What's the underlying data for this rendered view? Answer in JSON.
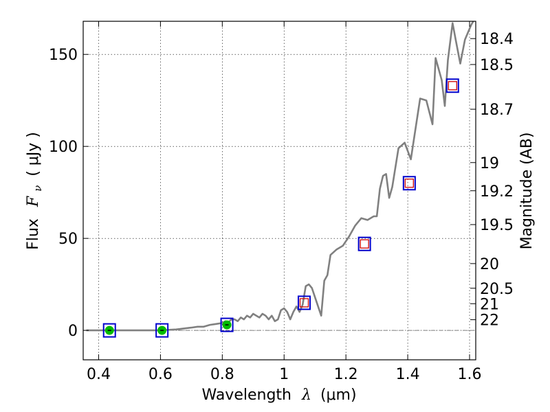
{
  "chart_data": {
    "type": "line",
    "xlabel_text": "Wavelength",
    "xlabel_symbol": "λ",
    "xlabel_unit": "(μm)",
    "ylabel_text": "Flux",
    "ylabel_symbol": "F",
    "ylabel_subscript": "ν",
    "ylabel_unit": "( μJy )",
    "ylabel_right": "Magnitude (AB)",
    "xlim": [
      0.35,
      1.62
    ],
    "ylim": [
      -16,
      168
    ],
    "xticks": [
      0.4,
      0.6,
      0.8,
      1.0,
      1.2,
      1.4,
      1.6
    ],
    "xtick_labels": [
      "0.4",
      "0.6",
      "0.8",
      "1",
      "1.2",
      "1.4",
      "1.6"
    ],
    "yticks": [
      0,
      50,
      100,
      150
    ],
    "ytick_labels": [
      "0",
      "50",
      "100",
      "150"
    ],
    "right_ticks": [
      {
        "label": "18.4",
        "flux": 158.6
      },
      {
        "label": "18.5",
        "flux": 144.5
      },
      {
        "label": "18.7",
        "flux": 120.2
      },
      {
        "label": "19",
        "flux": 91.2
      },
      {
        "label": "19.2",
        "flux": 75.9
      },
      {
        "label": "19.5",
        "flux": 57.5
      },
      {
        "label": "20",
        "flux": 36.3
      },
      {
        "label": "20.5",
        "flux": 22.9
      },
      {
        "label": "21",
        "flux": 14.5
      },
      {
        "label": "22",
        "flux": 5.8
      }
    ],
    "grid": true,
    "colors": {
      "spectrum": "#808080",
      "box_outer": "#0000cc",
      "box_inner": "#cc0000",
      "marker_fill": "#00bb00",
      "zero_line": "#555555"
    },
    "series": [
      {
        "type": "line",
        "x": [
          0.36,
          0.4,
          0.45,
          0.5,
          0.55,
          0.6,
          0.65,
          0.7,
          0.72,
          0.74,
          0.76,
          0.78,
          0.8,
          0.81,
          0.82,
          0.83,
          0.84,
          0.85,
          0.86,
          0.87,
          0.88,
          0.89,
          0.9,
          0.91,
          0.92,
          0.93,
          0.94,
          0.95,
          0.96,
          0.97,
          0.98,
          0.99,
          1.0,
          1.01,
          1.02,
          1.03,
          1.04,
          1.05,
          1.06,
          1.07,
          1.08,
          1.09,
          1.1,
          1.12,
          1.13,
          1.14,
          1.15,
          1.17,
          1.19,
          1.21,
          1.23,
          1.25,
          1.27,
          1.29,
          1.3,
          1.31,
          1.32,
          1.33,
          1.34,
          1.35,
          1.37,
          1.39,
          1.41,
          1.42,
          1.44,
          1.46,
          1.48,
          1.49,
          1.51,
          1.52,
          1.53,
          1.545,
          1.555,
          1.57,
          1.585,
          1.605,
          1.612
        ],
        "y": [
          0,
          0,
          0,
          0,
          0,
          0,
          0.5,
          1.5,
          2,
          2,
          3,
          3.5,
          4,
          5,
          4.5,
          6,
          6,
          5,
          7,
          6,
          8,
          7,
          9,
          8,
          7,
          9,
          8,
          6,
          8,
          5,
          6,
          11,
          12,
          10,
          6,
          10,
          13,
          10,
          14,
          24,
          25,
          23,
          18,
          8,
          27,
          30,
          41,
          44,
          46,
          51,
          57,
          61,
          60,
          62,
          62,
          77,
          84,
          85,
          72,
          78,
          99,
          102,
          93,
          104,
          126,
          125,
          112,
          148,
          136,
          122,
          147,
          167,
          158,
          145,
          158,
          166,
          168
        ]
      },
      {
        "type": "photometry",
        "x": [
          0.435,
          0.605,
          0.815,
          1.065,
          1.26,
          1.405,
          1.545
        ],
        "y": [
          0,
          0,
          3,
          15,
          47,
          80,
          133
        ],
        "filled": [
          true,
          true,
          true,
          false,
          false,
          false,
          false
        ]
      }
    ]
  }
}
